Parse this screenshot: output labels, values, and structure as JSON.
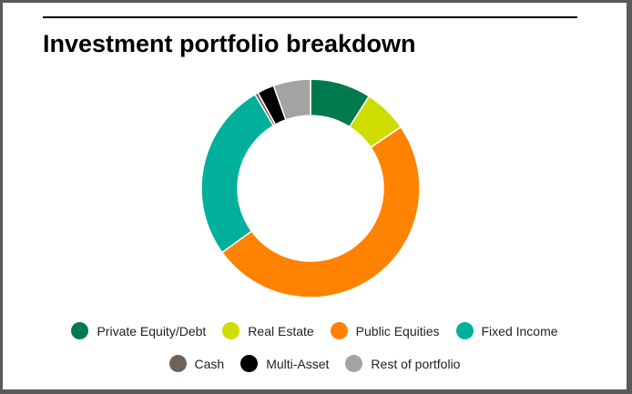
{
  "title": "Investment portfolio breakdown",
  "chart_data": {
    "type": "pie",
    "variant": "donut",
    "title": "Investment portfolio breakdown",
    "legend_position": "bottom",
    "series": [
      {
        "name": "Private Equity/Debt",
        "value": 9.0,
        "color": "#007A4D"
      },
      {
        "name": "Real Estate",
        "value": 6.5,
        "color": "#CEDC00"
      },
      {
        "name": "Public Equities",
        "value": 49.5,
        "color": "#FF8200"
      },
      {
        "name": "Fixed Income",
        "value": 26.5,
        "color": "#00B09A"
      },
      {
        "name": "Cash",
        "value": 0.5,
        "color": "#6E625A"
      },
      {
        "name": "Multi-Asset",
        "value": 2.5,
        "color": "#000000"
      },
      {
        "name": "Rest of portfolio",
        "value": 5.5,
        "color": "#A3A3A3"
      }
    ]
  }
}
